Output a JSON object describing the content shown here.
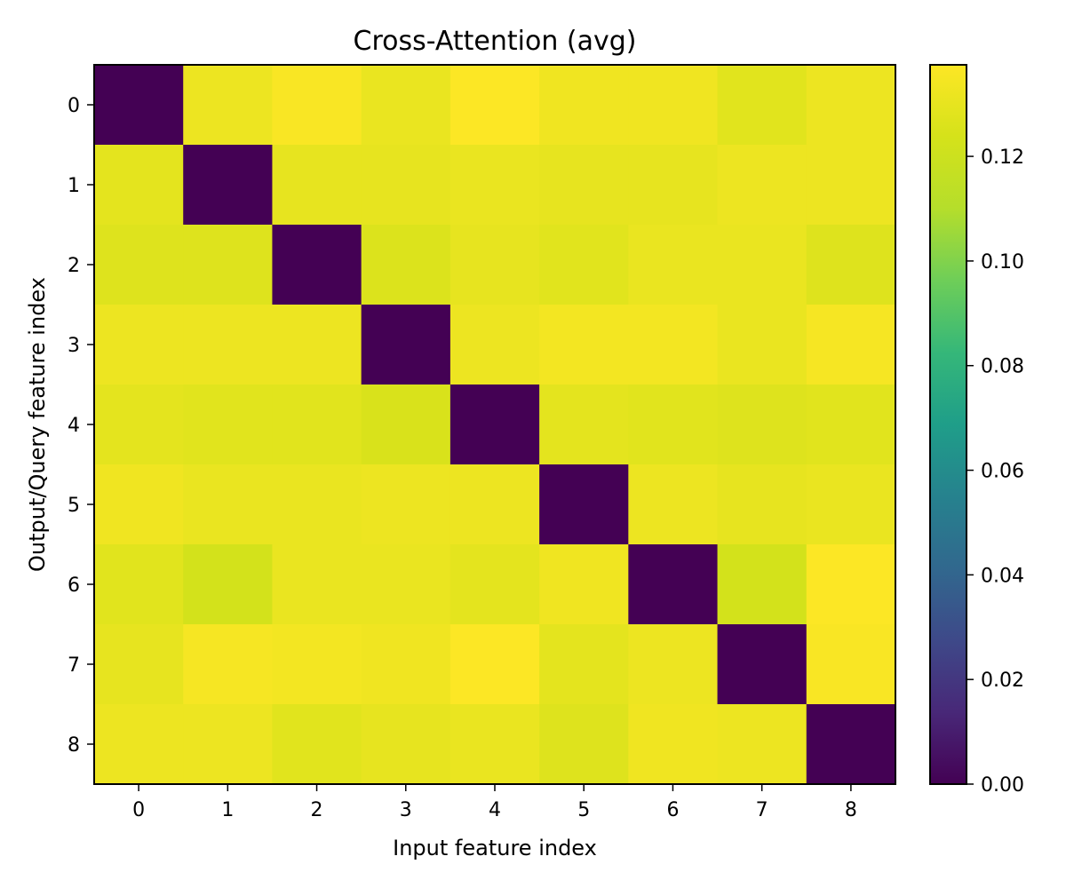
{
  "chart_data": {
    "type": "heatmap",
    "title": "Cross-Attention (avg)",
    "xlabel": "Input feature index",
    "ylabel": "Output/Query feature index",
    "x_categories": [
      "0",
      "1",
      "2",
      "3",
      "4",
      "5",
      "6",
      "7",
      "8"
    ],
    "y_categories": [
      "0",
      "1",
      "2",
      "3",
      "4",
      "5",
      "6",
      "7",
      "8"
    ],
    "values": [
      [
        0.0,
        0.132,
        0.136,
        0.131,
        0.137,
        0.133,
        0.133,
        0.128,
        0.132
      ],
      [
        0.129,
        0.0,
        0.13,
        0.13,
        0.131,
        0.13,
        0.13,
        0.132,
        0.132
      ],
      [
        0.127,
        0.127,
        0.0,
        0.126,
        0.13,
        0.128,
        0.131,
        0.131,
        0.127
      ],
      [
        0.132,
        0.132,
        0.132,
        0.0,
        0.132,
        0.134,
        0.134,
        0.131,
        0.135
      ],
      [
        0.129,
        0.128,
        0.128,
        0.125,
        0.0,
        0.129,
        0.128,
        0.127,
        0.128
      ],
      [
        0.133,
        0.131,
        0.131,
        0.132,
        0.132,
        0.0,
        0.132,
        0.13,
        0.131
      ],
      [
        0.128,
        0.123,
        0.131,
        0.131,
        0.129,
        0.133,
        0.0,
        0.123,
        0.137
      ],
      [
        0.13,
        0.135,
        0.134,
        0.133,
        0.137,
        0.129,
        0.132,
        0.0,
        0.136
      ],
      [
        0.132,
        0.132,
        0.128,
        0.13,
        0.131,
        0.127,
        0.133,
        0.132,
        0.0
      ]
    ],
    "colormap": "viridis",
    "colorbar": {
      "range": [
        0.0,
        0.1375
      ],
      "ticks": [
        "0.00",
        "0.02",
        "0.04",
        "0.06",
        "0.08",
        "0.10",
        "0.12"
      ]
    }
  }
}
